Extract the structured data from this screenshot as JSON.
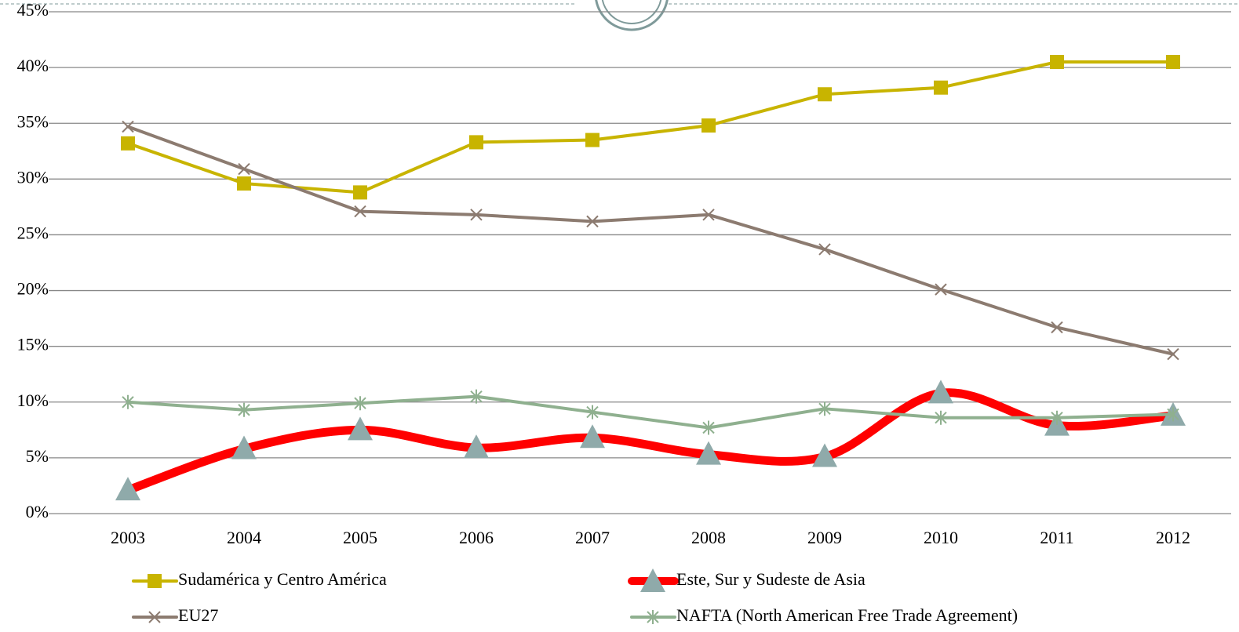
{
  "chart_data": {
    "type": "line",
    "categories": [
      "2003",
      "2004",
      "2005",
      "2006",
      "2007",
      "2008",
      "2009",
      "2010",
      "2011",
      "2012"
    ],
    "series": [
      {
        "name": "Sudamérica y Centro América",
        "color": "#c8b400",
        "marker": "square",
        "values": [
          33.2,
          29.6,
          28.8,
          33.3,
          33.5,
          34.8,
          37.6,
          38.2,
          40.5,
          40.5
        ]
      },
      {
        "name": "Este, Sur y Sudeste de Asia",
        "color": "#ff0000",
        "marker": "triangle",
        "marker_color": "#8faaaa",
        "smooth": true,
        "values": [
          2.1,
          5.8,
          7.5,
          5.9,
          6.8,
          5.3,
          5.1,
          10.8,
          7.9,
          8.8
        ]
      },
      {
        "name": "EU27",
        "color": "#8c7b70",
        "marker": "x",
        "values": [
          34.7,
          30.9,
          27.1,
          26.8,
          26.2,
          26.8,
          23.7,
          20.1,
          16.7,
          14.3
        ]
      },
      {
        "name": "NAFTA (North American Free Trade Agreement)",
        "color": "#8fb08f",
        "marker": "asterisk",
        "values": [
          10.0,
          9.3,
          9.9,
          10.5,
          9.1,
          7.7,
          9.4,
          8.6,
          8.6,
          8.9
        ]
      }
    ],
    "ylim": [
      0,
      45
    ],
    "yticks": [
      {
        "value": 0,
        "label": "0%"
      },
      {
        "value": 5,
        "label": "5%"
      },
      {
        "value": 10,
        "label": "10%"
      },
      {
        "value": 15,
        "label": "15%"
      },
      {
        "value": 20,
        "label": "20%"
      },
      {
        "value": 25,
        "label": "25%"
      },
      {
        "value": 30,
        "label": "30%"
      },
      {
        "value": 35,
        "label": "35%"
      },
      {
        "value": 40,
        "label": "40%"
      },
      {
        "value": 45,
        "label": "45%"
      }
    ],
    "grid": true,
    "legend": "bottom"
  }
}
